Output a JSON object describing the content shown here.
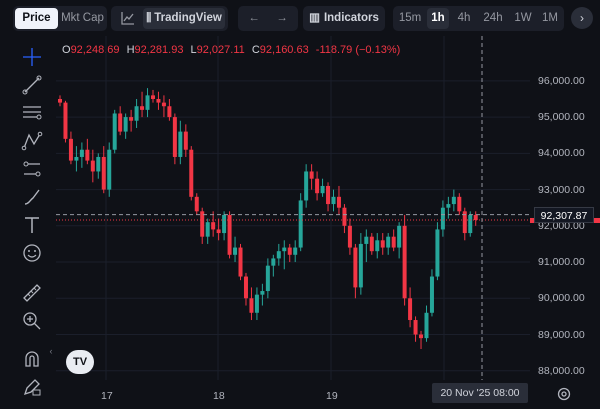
{
  "toolbar": {
    "price_tab": "Price",
    "mktcap_tab": "Mkt Cap",
    "tradingview_label": "TradingView",
    "indicators_label": "Indicators",
    "timeframes": [
      "15m",
      "1h",
      "4h",
      "24h",
      "1W",
      "1M"
    ],
    "active_timeframe": "1h"
  },
  "legend": {
    "o_key": "O",
    "o_val": "92,248.69",
    "h_key": "H",
    "h_val": "92,281.93",
    "l_key": "L",
    "l_val": "92,027.11",
    "c_key": "C",
    "c_val": "92,160.63",
    "change": "-118.79 (−0.13%)"
  },
  "price_scale": {
    "labels": [
      "96,000.00",
      "95,000.00",
      "94,000.00",
      "93,000.00",
      "92,000.00",
      "91,000.00",
      "90,000.00",
      "89,000.00",
      "88,000.00"
    ],
    "crosshair_price": "92,307.87"
  },
  "time_axis": {
    "labels": [
      "17",
      "18",
      "19"
    ],
    "crosshair_time": "20 Nov '25   08:00"
  },
  "logo_text": "TV",
  "colors": {
    "up": "#26a69a",
    "down": "#f23645",
    "background": "#0f1117"
  },
  "chart_data": {
    "type": "candlestick",
    "ylim": [
      87800,
      96300
    ],
    "last_price": 92160.63,
    "candles": [
      [
        95500,
        95600,
        95300,
        95400
      ],
      [
        95400,
        95450,
        94300,
        94400
      ],
      [
        94400,
        94600,
        93700,
        93800
      ],
      [
        93800,
        94200,
        93500,
        93900
      ],
      [
        93900,
        94300,
        93600,
        94100
      ],
      [
        94100,
        94400,
        93700,
        93800
      ],
      [
        93800,
        94100,
        93200,
        93500
      ],
      [
        93500,
        94000,
        93300,
        93900
      ],
      [
        93900,
        94200,
        92900,
        93000
      ],
      [
        93000,
        94300,
        92800,
        94100
      ],
      [
        94100,
        95200,
        94000,
        95100
      ],
      [
        95100,
        95300,
        94500,
        94600
      ],
      [
        94600,
        95100,
        94400,
        95000
      ],
      [
        95000,
        95200,
        94600,
        94900
      ],
      [
        94900,
        95500,
        94700,
        95300
      ],
      [
        95300,
        95700,
        95000,
        95200
      ],
      [
        95200,
        95800,
        95000,
        95600
      ],
      [
        95600,
        95750,
        95400,
        95500
      ],
      [
        95500,
        95700,
        95200,
        95400
      ],
      [
        95400,
        95600,
        95000,
        95300
      ],
      [
        95300,
        95500,
        94900,
        95000
      ],
      [
        95000,
        95100,
        93700,
        93900
      ],
      [
        93900,
        94900,
        93700,
        94600
      ],
      [
        94600,
        94800,
        93900,
        94100
      ],
      [
        94100,
        94200,
        92700,
        92800
      ],
      [
        92800,
        92900,
        92300,
        92400
      ],
      [
        92400,
        92500,
        91500,
        91700
      ],
      [
        91700,
        92200,
        91500,
        92100
      ],
      [
        92100,
        92400,
        91700,
        91900
      ],
      [
        91900,
        92200,
        91600,
        91800
      ],
      [
        91800,
        92400,
        91600,
        92300
      ],
      [
        92300,
        92400,
        91100,
        91200
      ],
      [
        91200,
        91700,
        91000,
        91400
      ],
      [
        91400,
        91500,
        90500,
        90600
      ],
      [
        90600,
        90700,
        89800,
        90000
      ],
      [
        90000,
        90300,
        89400,
        89600
      ],
      [
        89600,
        90300,
        89400,
        90100
      ],
      [
        90100,
        90400,
        89800,
        90200
      ],
      [
        90200,
        91100,
        90000,
        90900
      ],
      [
        90900,
        91200,
        90600,
        91100
      ],
      [
        91100,
        91500,
        90900,
        91300
      ],
      [
        91300,
        91600,
        90800,
        91400
      ],
      [
        91400,
        91500,
        91000,
        91200
      ],
      [
        91200,
        91600,
        91000,
        91400
      ],
      [
        91400,
        92900,
        91300,
        92700
      ],
      [
        92700,
        93700,
        92500,
        93500
      ],
      [
        93500,
        93700,
        93000,
        93300
      ],
      [
        93300,
        93500,
        92700,
        92900
      ],
      [
        92900,
        93300,
        92800,
        93100
      ],
      [
        93100,
        93200,
        92400,
        92600
      ],
      [
        92600,
        93000,
        92400,
        92800
      ],
      [
        92800,
        93100,
        92300,
        92500
      ],
      [
        92500,
        92600,
        91800,
        92000
      ],
      [
        92000,
        92200,
        91200,
        91400
      ],
      [
        91400,
        91500,
        90000,
        90300
      ],
      [
        90300,
        91800,
        90100,
        91500
      ],
      [
        91500,
        91900,
        91000,
        91700
      ],
      [
        91700,
        91800,
        91200,
        91300
      ],
      [
        91300,
        91800,
        91100,
        91600
      ],
      [
        91600,
        91800,
        91200,
        91400
      ],
      [
        91400,
        91800,
        91200,
        91700
      ],
      [
        91700,
        91900,
        91300,
        91400
      ],
      [
        91400,
        92100,
        91100,
        92000
      ],
      [
        92000,
        92300,
        89800,
        90000
      ],
      [
        90000,
        90300,
        89200,
        89400
      ],
      [
        89400,
        89500,
        88800,
        89000
      ],
      [
        89000,
        89100,
        88600,
        88900
      ],
      [
        88900,
        89800,
        88800,
        89600
      ],
      [
        89600,
        90800,
        89500,
        90600
      ],
      [
        90600,
        92100,
        90500,
        91900
      ],
      [
        91900,
        92700,
        91700,
        92500
      ],
      [
        92500,
        92800,
        92200,
        92600
      ],
      [
        92600,
        93000,
        92400,
        92800
      ],
      [
        92800,
        92900,
        92300,
        92400
      ],
      [
        92400,
        92500,
        91600,
        91800
      ],
      [
        91800,
        92400,
        91700,
        92300
      ],
      [
        92300,
        92400,
        92000,
        92160
      ]
    ]
  }
}
